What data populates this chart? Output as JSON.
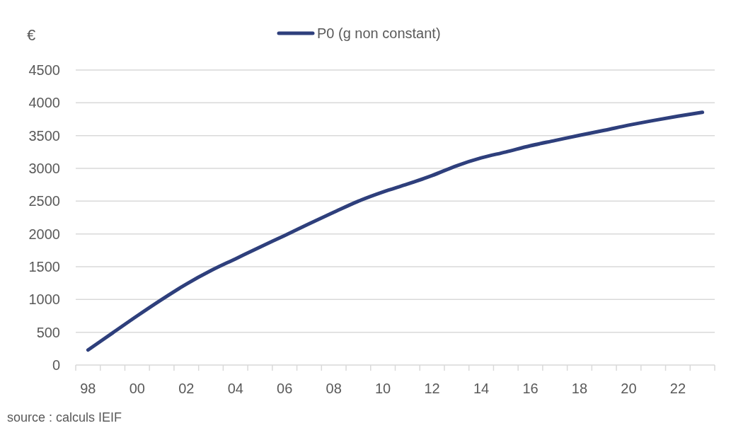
{
  "chart_data": {
    "type": "line",
    "ylabel": "€",
    "categories": [
      "98",
      null,
      "00",
      null,
      "02",
      null,
      "04",
      null,
      "06",
      null,
      "08",
      null,
      "10",
      null,
      "12",
      null,
      "14",
      null,
      "16",
      null,
      "18",
      null,
      "20",
      null,
      "22",
      null
    ],
    "series": [
      {
        "name": "P0 (g non constant)",
        "color": "#2e3f7c",
        "values": [
          230,
          490,
          750,
          1000,
          1235,
          1440,
          1620,
          1800,
          1975,
          2155,
          2330,
          2500,
          2640,
          2760,
          2890,
          3040,
          3160,
          3250,
          3345,
          3425,
          3505,
          3580,
          3660,
          3730,
          3795,
          3855
        ]
      }
    ],
    "ylim": [
      0,
      4500
    ],
    "yticks": [
      0,
      500,
      1000,
      1500,
      2000,
      2500,
      3000,
      3500,
      4000,
      4500
    ],
    "grid": "y",
    "legend": "top",
    "marker": "none",
    "line_style": "solid",
    "annotations": [
      "source : calculs IEIF"
    ]
  }
}
